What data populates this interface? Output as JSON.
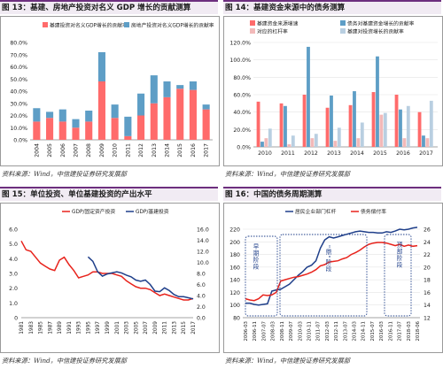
{
  "panels": [
    {
      "title": "图 13：基建、房地产投资对名义 GDP 增长的贡献测算",
      "source": "资料来源：Wind，中信建投证券研究发展部"
    },
    {
      "title": "图 14：基建资金来源中的债务测算",
      "source": "资料来源：Wind，中信建投证券研究发展部"
    },
    {
      "title": "图 15：单位投资、单位基建投资的产出水平",
      "source": "资料来源：Wind，中信建投证券研究发展部"
    },
    {
      "title": "图 16：中国的债务周期测算",
      "source": "资料来源：Wind，中信建投证券研究发展部"
    }
  ],
  "chart_data": [
    {
      "type": "bar",
      "stacked": true,
      "categories": [
        "2004",
        "2005",
        "2006",
        "2007",
        "2008",
        "2009",
        "2010",
        "2011",
        "2012",
        "2013",
        "2014",
        "2015",
        "2016",
        "2017"
      ],
      "series": [
        {
          "name": "基建投资对名义GDP增长的贡献率",
          "color": "#ff6b6b",
          "values": [
            15,
            18,
            15,
            10,
            15,
            48,
            18,
            3,
            20,
            30,
            35,
            42,
            41,
            25
          ]
        },
        {
          "name": "房地产投资对名义GDP增长的贡献率",
          "color": "#5e9ec6",
          "values": [
            11,
            5,
            10,
            7,
            9,
            24,
            11,
            16,
            18,
            23,
            13,
            3,
            7,
            4
          ]
        }
      ],
      "ylim": [
        0,
        80
      ],
      "yticks": [
        "0.0%",
        "10.0%",
        "20.0%",
        "30.0%",
        "40.0%",
        "50.0%",
        "60.0%",
        "70.0%",
        "80.0%"
      ],
      "legend": "top",
      "grid": false
    },
    {
      "type": "bar",
      "grouped": true,
      "categories": [
        "2010",
        "2011",
        "2012",
        "2013",
        "2014",
        "2015",
        "2016",
        "2017"
      ],
      "series": [
        {
          "name": "基建资金来源增速",
          "color": "#ff6b6b",
          "values": [
            52,
            50,
            60,
            45,
            48,
            63,
            60,
            40
          ]
        },
        {
          "name": "债务对基建资金增长的贡献率",
          "color": "#5e9ec6",
          "values": [
            6,
            47,
            115,
            59,
            64,
            104,
            43,
            13
          ]
        },
        {
          "name": "对应的杠杆率",
          "color": "#f2b9b9",
          "values": [
            10,
            3,
            10,
            7,
            10,
            37,
            10,
            10
          ]
        },
        {
          "name": "基建对投资增长的贡献率",
          "color": "#b9cfe1",
          "values": [
            21,
            13,
            15,
            22,
            28,
            39,
            47,
            53
          ]
        }
      ],
      "ylim": [
        0,
        120
      ],
      "yticks": [
        "0.0%",
        "20.0%",
        "40.0%",
        "60.0%",
        "80.0%",
        "100.0%",
        "120.0%"
      ],
      "legend": "top",
      "grid": true
    },
    {
      "type": "line",
      "x_labels": [
        "1981",
        "1983",
        "1985",
        "1987",
        "1989",
        "1991",
        "1993",
        "1995",
        "1997",
        "1999",
        "2001",
        "2003",
        "2005",
        "2007",
        "2009",
        "2011",
        "2013",
        "2015",
        "2017"
      ],
      "series": [
        {
          "name": "GDP/固定资产投资",
          "axis": "left",
          "color": "#e8231c",
          "x": [
            1981,
            1982,
            1983,
            1984,
            1985,
            1986,
            1987,
            1988,
            1989,
            1990,
            1991,
            1992,
            1993,
            1994,
            1995,
            1996,
            1997,
            1998,
            1999,
            2000,
            2001,
            2002,
            2003,
            2004,
            2005,
            2006,
            2007,
            2008,
            2009,
            2010,
            2011,
            2012,
            2013,
            2014,
            2015,
            2016,
            2017
          ],
          "values": [
            5.2,
            4.6,
            4.5,
            4.1,
            3.7,
            3.5,
            3.3,
            3.2,
            3.9,
            4.1,
            3.6,
            3.2,
            2.7,
            2.8,
            2.9,
            3.1,
            3.1,
            3.0,
            3.0,
            3.0,
            2.9,
            2.8,
            2.5,
            2.3,
            2.1,
            2.0,
            2.0,
            1.9,
            1.7,
            1.5,
            1.6,
            1.5,
            1.4,
            1.3,
            1.2,
            1.2,
            1.3
          ]
        },
        {
          "name": "GDP/基建投资",
          "axis": "right",
          "color": "#1f3f8a",
          "x": [
            1995,
            1996,
            1997,
            1998,
            1999,
            2000,
            2001,
            2002,
            2003,
            2004,
            2005,
            2006,
            2007,
            2008,
            2009,
            2010,
            2011,
            2012,
            2013,
            2014,
            2015,
            2016,
            2017
          ],
          "values": [
            11.0,
            10.2,
            8.3,
            7.5,
            7.9,
            8.1,
            8.3,
            8.1,
            7.7,
            7.4,
            6.8,
            6.6,
            6.8,
            6.0,
            4.8,
            4.7,
            5.4,
            4.9,
            4.2,
            3.8,
            3.8,
            3.6,
            3.4
          ]
        }
      ],
      "ylim_left": [
        0,
        6
      ],
      "yticks_left": [
        "0",
        "1.0",
        "2.0",
        "3.0",
        "4.0",
        "5.0",
        "6.0"
      ],
      "ylim_right": [
        0,
        16
      ],
      "yticks_right": [
        "0.0",
        "2.0",
        "4.0",
        "6.0",
        "8.0",
        "10.0",
        "12.0",
        "14.0",
        "16.0"
      ],
      "legend": "top",
      "grid": false
    },
    {
      "type": "line",
      "x_labels": [
        "2006-03",
        "2006-11",
        "2007-07",
        "2008-03",
        "2008-11",
        "2009-07",
        "2010-03",
        "2010-11",
        "2011-07",
        "2012-03",
        "2012-11",
        "2013-07",
        "2014-03",
        "2014-11",
        "2015-07",
        "2016-03",
        "2016-11",
        "2017-07",
        "2018-03",
        "2018-06"
      ],
      "series": [
        {
          "name": "居民企业部门杠杆",
          "axis": "left",
          "color": "#1f3f8a",
          "values": [
            103,
            103,
            101,
            100,
            101,
            102,
            122,
            124,
            125,
            129,
            133,
            140,
            147,
            153,
            160,
            163,
            170,
            190,
            203,
            208,
            206,
            208,
            210,
            212,
            214,
            216,
            217,
            216,
            215,
            215,
            214,
            214,
            216,
            215,
            217,
            220,
            219,
            220,
            222,
            223
          ]
        },
        {
          "name": "债务偿付率",
          "axis": "right",
          "color": "#e8231c",
          "values": [
            15.0,
            14.8,
            14.7,
            15.0,
            15.6,
            15.5,
            15.6,
            16.0,
            17.8,
            18.0,
            18.2,
            18.4,
            18.5,
            18.7,
            18.9,
            19.2,
            19.6,
            20.2,
            20.4,
            20.8,
            20.9,
            21.0,
            21.3,
            21.5,
            22.0,
            22.3,
            22.7,
            23.2,
            23.6,
            23.8,
            23.9,
            23.9,
            23.8,
            23.6,
            23.4,
            23.6,
            23.3,
            23.5,
            23.3,
            23.4
          ]
        }
      ],
      "ylim_left": [
        80,
        220
      ],
      "yticks_left": [
        "80",
        "100",
        "120",
        "140",
        "160",
        "180",
        "200",
        "220"
      ],
      "ylim_right": [
        12,
        26
      ],
      "yticks_right": [
        "12",
        "14",
        "16",
        "18",
        "20",
        "22",
        "24",
        "26"
      ],
      "annotations": [
        "早期阶段",
        "\"鼎\"阶段",
        "顶部阶段"
      ],
      "legend": "top",
      "grid": true
    }
  ]
}
